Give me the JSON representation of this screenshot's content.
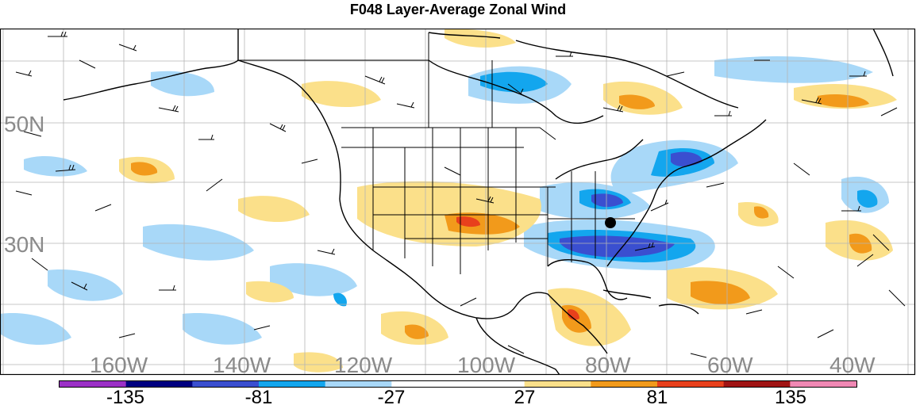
{
  "title": "F048 Layer-Average Zonal Wind",
  "map": {
    "lat_labels": [
      "50N",
      "30N"
    ],
    "lon_labels": [
      "160W",
      "140W",
      "120W",
      "100W",
      "80W",
      "60W",
      "40W"
    ]
  },
  "colorbar": {
    "colors": [
      "#9b30c6",
      "#000080",
      "#3a4fd0",
      "#13a6ee",
      "#a8d8f8",
      "#ffffff",
      "#ffffff",
      "#fbe08a",
      "#f29a1b",
      "#e8401c",
      "#a01414",
      "#f088b4"
    ],
    "tick_labels": [
      "-135",
      "-81",
      "-27",
      "27",
      "81",
      "135"
    ]
  },
  "marker": {
    "name": "station-dot",
    "color": "#000000"
  }
}
